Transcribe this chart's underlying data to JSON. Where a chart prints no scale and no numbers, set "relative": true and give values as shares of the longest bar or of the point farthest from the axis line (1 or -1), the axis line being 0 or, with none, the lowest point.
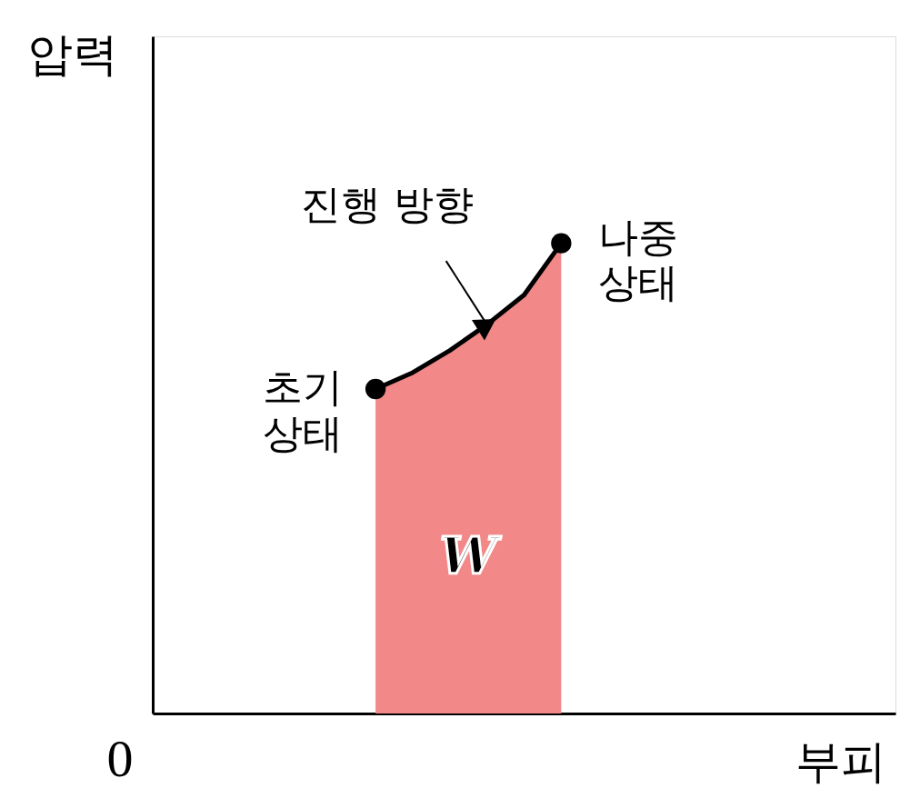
{
  "chart_data": {
    "type": "area",
    "relative": true,
    "xlabel": "부피",
    "ylabel": "압력",
    "categories": [
      null,
      null,
      null,
      null,
      null,
      null,
      null,
      null,
      null,
      null,
      null,
      null,
      null,
      null,
      null,
      null,
      null,
      null,
      null,
      null,
      null
    ],
    "series": [
      {
        "color": "#f28888",
        "values": [
          null,
          null,
          null,
          null,
          null,
          null,
          0.69,
          0.725,
          0.772,
          0.827,
          0.89,
          1,
          null,
          null,
          null,
          null,
          null,
          null,
          null,
          null,
          null
        ]
      }
    ],
    "marker": "circle",
    "line_style": "solid",
    "annotations": [
      "초기\n상태",
      "나중\n상태",
      "진행 방향",
      "W",
      "0"
    ]
  }
}
